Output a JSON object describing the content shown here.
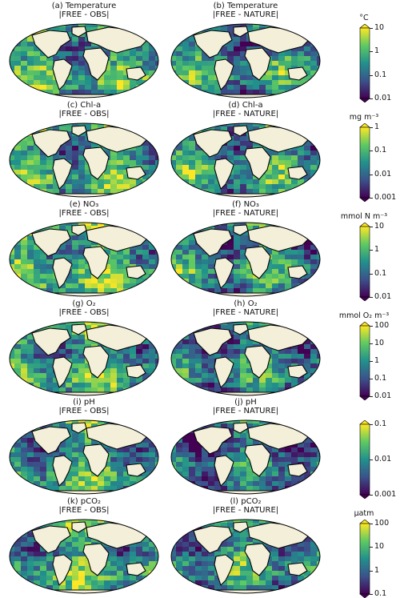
{
  "rows": [
    {
      "left": {
        "title": "(a) Temperature",
        "subtitle": "|FREE - OBS|"
      },
      "right": {
        "title": "(b) Temperature",
        "subtitle": "|FREE - NATURE|"
      },
      "colorbar": {
        "unit": "°C",
        "ticks": [
          "10",
          "1",
          "0.1",
          "0.01"
        ]
      }
    },
    {
      "left": {
        "title": "(c) Chl-a",
        "subtitle": "|FREE - OBS|"
      },
      "right": {
        "title": "(d) Chl-a",
        "subtitle": "|FREE - NATURE|"
      },
      "colorbar": {
        "unit": "mg m⁻³",
        "ticks": [
          "1",
          "0.1",
          "0.01",
          "0.001"
        ]
      }
    },
    {
      "left": {
        "title": "(e) NO₃",
        "subtitle": "|FREE - OBS|"
      },
      "right": {
        "title": "(f) NO₃",
        "subtitle": "|FREE - NATURE|"
      },
      "colorbar": {
        "unit": "mmol N m⁻³",
        "ticks": [
          "10",
          "1",
          "0.1",
          "0.01"
        ]
      }
    },
    {
      "left": {
        "title": "(g) O₂",
        "subtitle": "|FREE - OBS|"
      },
      "right": {
        "title": "(h) O₂",
        "subtitle": "|FREE - NATURE|"
      },
      "colorbar": {
        "unit": "mmol O₂ m⁻³",
        "ticks": [
          "100",
          "10",
          "1",
          "0.1",
          "0.01"
        ]
      }
    },
    {
      "left": {
        "title": "(i) pH",
        "subtitle": "|FREE - OBS|"
      },
      "right": {
        "title": "(j) pH",
        "subtitle": "|FREE - NATURE|"
      },
      "colorbar": {
        "unit": "",
        "ticks": [
          "0.1",
          "0.01",
          "0.001"
        ]
      }
    },
    {
      "left": {
        "title": "(k) pCO₂",
        "subtitle": "|FREE - OBS|"
      },
      "right": {
        "title": "(l) pCO₂",
        "subtitle": "|FREE - NATURE|"
      },
      "colorbar": {
        "unit": "µatm",
        "ticks": [
          "100",
          "10",
          "1",
          "0.1"
        ]
      }
    }
  ],
  "colors": {
    "land": "#f3efd9",
    "coast": "#000000",
    "viridis": [
      "#440154",
      "#3b528b",
      "#21918c",
      "#5ec962",
      "#fde725"
    ]
  },
  "intensity": [
    [
      0.55,
      0.45
    ],
    [
      0.55,
      0.5
    ],
    [
      0.6,
      0.45
    ],
    [
      0.55,
      0.4
    ],
    [
      0.5,
      0.35
    ],
    [
      0.55,
      0.45
    ]
  ]
}
